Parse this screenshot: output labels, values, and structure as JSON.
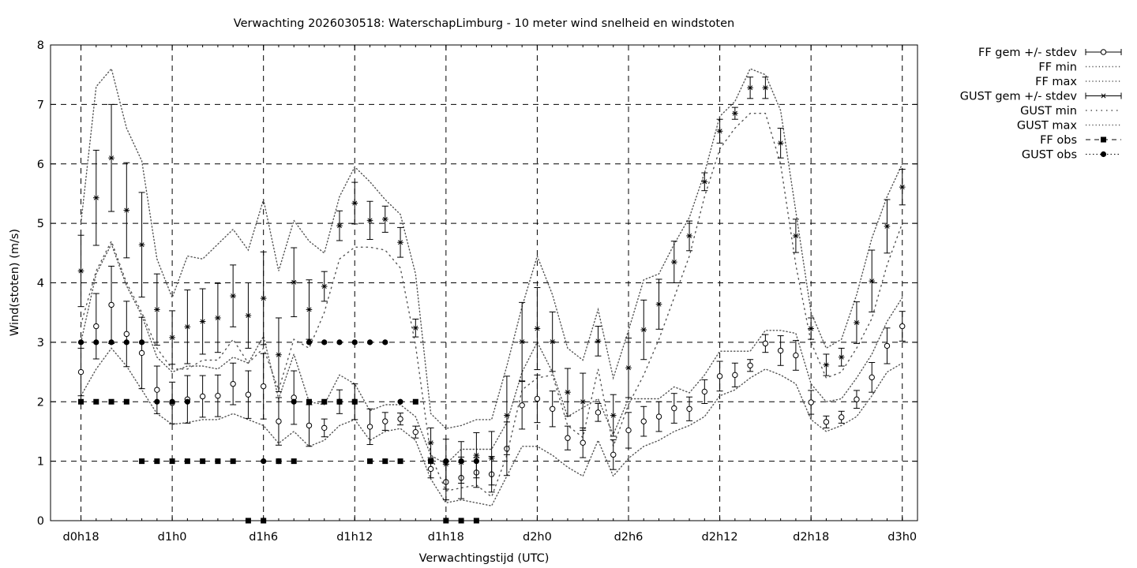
{
  "chart_data": {
    "type": "line",
    "title": "Verwachting 2026030518: WaterschapLimburg - 10 meter wind snelheid en windstoten",
    "xlabel": "Verwachtingstijd (UTC)",
    "ylabel": "Wind(stoten) (m/s)",
    "ylim": [
      0,
      8
    ],
    "xlim": [
      -2,
      55
    ],
    "yticks": [
      0,
      1,
      2,
      3,
      4,
      5,
      6,
      7,
      8
    ],
    "x_unit": "hours after d0h18",
    "xticks": [
      {
        "x": 0,
        "label": "d0h18"
      },
      {
        "x": 6,
        "label": "d1h0"
      },
      {
        "x": 12,
        "label": "d1h6"
      },
      {
        "x": 18,
        "label": "d1h12"
      },
      {
        "x": 24,
        "label": "d1h18"
      },
      {
        "x": 30,
        "label": "d2h0"
      },
      {
        "x": 36,
        "label": "d2h6"
      },
      {
        "x": 42,
        "label": "d2h12"
      },
      {
        "x": 48,
        "label": "d2h18"
      },
      {
        "x": 54,
        "label": "d3h0"
      }
    ],
    "grid": true,
    "legend_position": "outside-right",
    "x": [
      0,
      1,
      2,
      3,
      4,
      5,
      6,
      7,
      8,
      9,
      10,
      11,
      12,
      13,
      14,
      15,
      16,
      17,
      18,
      19,
      20,
      21,
      22,
      23,
      24,
      25,
      26,
      27,
      28,
      29,
      30,
      31,
      32,
      33,
      34,
      35,
      36,
      37,
      38,
      39,
      40,
      41,
      42,
      43,
      44,
      45,
      46,
      47,
      48,
      49,
      50,
      51,
      52,
      53,
      54
    ],
    "series": [
      {
        "name": "FF gem +/- stdev",
        "style": "errorbar-circle",
        "mean": [
          2.5,
          3.27,
          3.63,
          3.14,
          2.82,
          2.2,
          1.98,
          2.04,
          2.09,
          2.1,
          2.3,
          2.12,
          2.26,
          1.67,
          2.07,
          1.6,
          1.56,
          2.0,
          2.0,
          1.58,
          1.67,
          1.71,
          1.49,
          0.87,
          0.65,
          0.72,
          0.81,
          0.78,
          1.21,
          1.94,
          2.05,
          1.88,
          1.39,
          1.31,
          1.82,
          1.11,
          1.52,
          1.67,
          1.75,
          1.89,
          1.88,
          2.17,
          2.43,
          2.45,
          2.61,
          2.98,
          2.86,
          2.78,
          1.99,
          1.66,
          1.74,
          2.04,
          2.41,
          2.94,
          3.27
        ],
        "stdev": [
          0.4,
          0.55,
          0.65,
          0.55,
          0.6,
          0.4,
          0.35,
          0.4,
          0.35,
          0.35,
          0.35,
          0.4,
          0.55,
          0.4,
          0.45,
          0.35,
          0.15,
          0.2,
          0.3,
          0.3,
          0.15,
          0.1,
          0.1,
          0.15,
          0.3,
          0.35,
          0.25,
          0.3,
          0.45,
          0.4,
          0.4,
          0.3,
          0.2,
          0.25,
          0.15,
          0.25,
          0.3,
          0.25,
          0.25,
          0.25,
          0.2,
          0.2,
          0.25,
          0.2,
          0.1,
          0.15,
          0.25,
          0.25,
          0.2,
          0.1,
          0.1,
          0.15,
          0.25,
          0.3,
          0.25
        ]
      },
      {
        "name": "FF min",
        "style": "dotted",
        "values": [
          2.1,
          2.55,
          2.9,
          2.6,
          2.2,
          1.8,
          1.62,
          1.65,
          1.7,
          1.7,
          1.8,
          1.7,
          1.6,
          1.3,
          1.5,
          1.25,
          1.35,
          1.6,
          1.7,
          1.35,
          1.5,
          1.55,
          1.35,
          0.7,
          0.3,
          0.35,
          0.3,
          0.25,
          0.75,
          1.25,
          1.25,
          1.1,
          0.9,
          0.75,
          1.35,
          0.75,
          1.05,
          1.25,
          1.35,
          1.5,
          1.6,
          1.75,
          2.1,
          2.2,
          2.4,
          2.55,
          2.45,
          2.3,
          1.7,
          1.5,
          1.6,
          1.75,
          2.1,
          2.5,
          2.65
        ]
      },
      {
        "name": "FF max",
        "style": "dotted",
        "values": [
          3.0,
          4.15,
          4.65,
          3.95,
          3.45,
          2.75,
          2.5,
          2.6,
          2.6,
          2.55,
          2.75,
          2.65,
          3.1,
          2.05,
          2.8,
          2.0,
          1.95,
          2.45,
          2.3,
          1.85,
          1.95,
          1.95,
          1.75,
          1.1,
          0.95,
          1.2,
          1.2,
          1.2,
          1.65,
          2.5,
          3.0,
          2.5,
          1.75,
          1.9,
          2.05,
          1.45,
          2.05,
          2.05,
          2.05,
          2.25,
          2.15,
          2.45,
          2.85,
          2.85,
          2.85,
          3.2,
          3.2,
          3.15,
          2.3,
          2.0,
          2.05,
          2.4,
          2.8,
          3.35,
          3.75
        ]
      },
      {
        "name": "GUST gem +/- stdev",
        "style": "errorbar-star",
        "mean": [
          4.2,
          5.43,
          6.1,
          5.22,
          4.64,
          3.55,
          3.08,
          3.26,
          3.35,
          3.41,
          3.78,
          3.45,
          3.74,
          2.79,
          4.01,
          3.55,
          3.94,
          4.96,
          5.34,
          5.05,
          5.07,
          4.68,
          3.24,
          1.31,
          0.95,
          0.98,
          1.1,
          1.05,
          1.77,
          3.01,
          3.23,
          3.01,
          2.16,
          2.0,
          3.02,
          1.77,
          2.57,
          3.21,
          3.64,
          4.35,
          4.79,
          5.7,
          6.55,
          6.85,
          7.28,
          7.28,
          6.35,
          4.79,
          3.23,
          2.62,
          2.75,
          3.33,
          4.03,
          4.95,
          5.61
        ],
        "stdev": [
          0.6,
          0.8,
          0.9,
          0.8,
          0.88,
          0.6,
          0.45,
          0.62,
          0.55,
          0.58,
          0.52,
          0.55,
          0.78,
          0.62,
          0.58,
          0.5,
          0.25,
          0.25,
          0.35,
          0.32,
          0.22,
          0.25,
          0.15,
          0.25,
          0.42,
          0.35,
          0.38,
          0.45,
          0.66,
          0.66,
          0.69,
          0.5,
          0.4,
          0.48,
          0.25,
          0.35,
          0.5,
          0.5,
          0.42,
          0.35,
          0.25,
          0.15,
          0.2,
          0.1,
          0.18,
          0.18,
          0.25,
          0.28,
          0.18,
          0.18,
          0.15,
          0.35,
          0.52,
          0.45,
          0.3
        ]
      },
      {
        "name": "GUST min",
        "style": "dotted",
        "values": [
          3.3,
          4.2,
          4.7,
          4.0,
          3.5,
          2.9,
          2.55,
          2.55,
          2.7,
          2.7,
          3.05,
          2.65,
          2.9,
          2.2,
          3.05,
          2.9,
          3.5,
          4.4,
          4.6,
          4.6,
          4.55,
          4.25,
          2.95,
          1.1,
          0.5,
          0.55,
          0.6,
          0.4,
          1.1,
          2.2,
          2.4,
          2.45,
          1.6,
          1.4,
          2.55,
          1.25,
          1.95,
          2.45,
          3.05,
          3.75,
          4.45,
          5.45,
          6.25,
          6.6,
          6.85,
          6.85,
          6.0,
          4.3,
          3.0,
          2.4,
          2.5,
          2.9,
          3.4,
          4.3,
          5.0
        ]
      },
      {
        "name": "GUST max",
        "style": "dotted",
        "values": [
          5.0,
          7.3,
          7.6,
          6.6,
          6.05,
          4.4,
          3.75,
          4.45,
          4.4,
          4.65,
          4.9,
          4.55,
          5.4,
          4.2,
          5.05,
          4.7,
          4.5,
          5.45,
          5.95,
          5.7,
          5.4,
          5.15,
          4.15,
          1.8,
          1.55,
          1.6,
          1.7,
          1.7,
          2.6,
          3.6,
          4.45,
          3.8,
          2.9,
          2.7,
          3.55,
          2.4,
          3.2,
          4.05,
          4.15,
          4.65,
          5.1,
          5.85,
          6.8,
          7.05,
          7.6,
          7.5,
          6.9,
          5.2,
          3.5,
          2.9,
          3.05,
          3.8,
          4.75,
          5.45,
          6.0
        ]
      },
      {
        "name": "FF obs",
        "style": "markers-square",
        "points": [
          [
            0,
            2
          ],
          [
            1,
            2
          ],
          [
            2,
            2
          ],
          [
            3,
            2
          ],
          [
            4,
            1
          ],
          [
            5,
            1
          ],
          [
            6,
            1
          ],
          [
            7,
            1
          ],
          [
            8,
            1
          ],
          [
            9,
            1
          ],
          [
            10,
            1
          ],
          [
            11,
            0
          ],
          [
            12,
            0
          ],
          [
            13,
            1
          ],
          [
            14,
            1
          ],
          [
            15,
            2
          ],
          [
            16,
            2
          ],
          [
            17,
            2
          ],
          [
            18,
            2
          ],
          [
            19,
            1
          ],
          [
            20,
            1
          ],
          [
            21,
            1
          ],
          [
            22,
            2
          ],
          [
            23,
            1
          ],
          [
            24,
            0
          ],
          [
            25,
            0
          ],
          [
            26,
            0
          ]
        ]
      },
      {
        "name": "GUST obs",
        "style": "markers-circle",
        "points": [
          [
            0,
            3
          ],
          [
            1,
            3
          ],
          [
            2,
            3
          ],
          [
            3,
            3
          ],
          [
            4,
            3
          ],
          [
            5,
            2
          ],
          [
            6,
            2
          ],
          [
            7,
            2
          ],
          [
            12,
            1
          ],
          [
            13,
            1
          ],
          [
            14,
            2
          ],
          [
            15,
            3
          ],
          [
            16,
            3
          ],
          [
            17,
            3
          ],
          [
            18,
            3
          ],
          [
            19,
            3
          ],
          [
            20,
            3
          ],
          [
            21,
            2
          ],
          [
            23,
            1
          ],
          [
            24,
            1
          ],
          [
            25,
            1
          ],
          [
            26,
            1
          ]
        ]
      }
    ]
  }
}
